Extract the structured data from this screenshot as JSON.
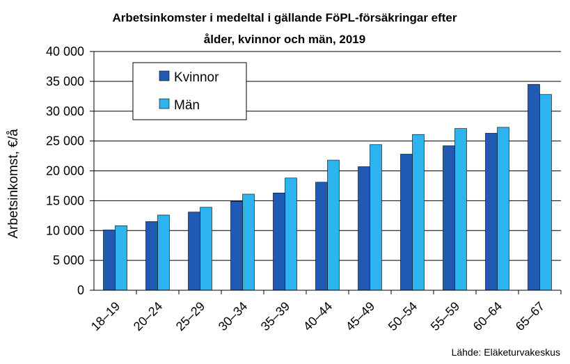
{
  "chart_data": {
    "type": "bar",
    "title_lines": [
      "Arbetsinkomster i medeltal i gällande FöPL-försäkringar efter",
      "ålder, kvinnor och män, 2019"
    ],
    "ylabel": "Arbetsinkomst, €/å",
    "xlabel": "",
    "categories": [
      "18–19",
      "20–24",
      "25–29",
      "30–34",
      "35–39",
      "40–44",
      "45–49",
      "50–54",
      "55–59",
      "60–64",
      "65–67"
    ],
    "series": [
      {
        "name": "Kvinnor",
        "color": "#1F5BB5",
        "values": [
          10100,
          11500,
          13100,
          14900,
          16300,
          18100,
          20700,
          22800,
          24200,
          26300,
          34500
        ]
      },
      {
        "name": "Män",
        "color": "#2DB3EE",
        "values": [
          10800,
          12600,
          13900,
          16100,
          18800,
          21800,
          24400,
          26100,
          27100,
          27300,
          32800
        ]
      }
    ],
    "ylim": [
      0,
      40000
    ],
    "yticks": [
      0,
      5000,
      10000,
      15000,
      20000,
      25000,
      30000,
      35000,
      40000
    ],
    "ytick_labels": [
      "0",
      "5 000",
      "10 000",
      "15 000",
      "20 000",
      "25 000",
      "30 000",
      "35 000",
      "40 000"
    ],
    "grid": true,
    "legend_position": "top-left",
    "source": "Lähde: Eläketurvakeskus"
  }
}
